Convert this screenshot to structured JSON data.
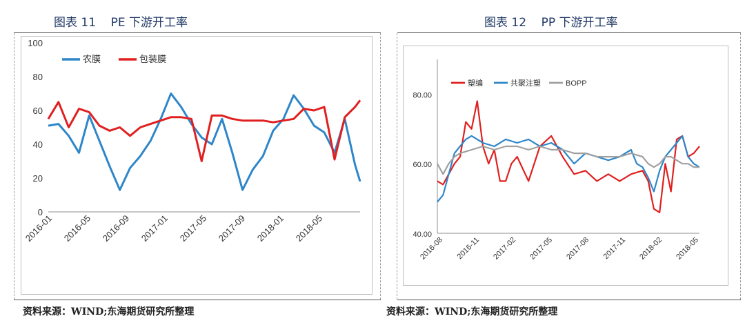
{
  "left": {
    "title": "图表 11    PE 下游开工率",
    "source": "资料来源：WIND;东海期货研究所整理"
  },
  "right": {
    "title": "图表 12    PP 下游开工率",
    "source": "资料来源：WIND;东海期货研究所整理"
  },
  "colors": {
    "blue": "#2e86c9",
    "red": "#e02020",
    "grey": "#a0a0a0"
  },
  "chart_data": [
    {
      "type": "line",
      "title": "",
      "xlabel": "",
      "ylabel": "",
      "ylim": [
        0,
        100
      ],
      "yticks": [
        0,
        20,
        40,
        60,
        80,
        100
      ],
      "xticks": [
        "2016-01",
        "2016-05",
        "2016-09",
        "2017-01",
        "2017-05",
        "2017-09",
        "2018-01",
        "2018-05"
      ],
      "xrange": [
        0,
        30.5
      ],
      "legend": "top-left",
      "grid": false,
      "series": [
        {
          "name": "农膜",
          "color": "blue",
          "x": [
            0,
            1,
            2,
            3,
            4,
            5,
            6,
            7,
            8,
            9,
            10,
            11,
            12,
            13,
            14,
            15,
            16,
            17,
            18,
            19,
            20,
            21,
            22,
            23,
            24,
            25,
            26,
            27,
            28,
            29,
            30,
            30.5
          ],
          "y": [
            51,
            52,
            45,
            35,
            57,
            42,
            27,
            13,
            26,
            33,
            42,
            55,
            70,
            62,
            52,
            44,
            40,
            55,
            35,
            13,
            25,
            33,
            48,
            55,
            69,
            61,
            51,
            47,
            35,
            55,
            28,
            18
          ]
        },
        {
          "name": "包装膜",
          "color": "red",
          "x": [
            0,
            1,
            2,
            3,
            4,
            5,
            6,
            7,
            8,
            9,
            10,
            11,
            12,
            13,
            14,
            15,
            16,
            17,
            18,
            19,
            20,
            21,
            22,
            23,
            24,
            25,
            26,
            27,
            28,
            29,
            30,
            30.5
          ],
          "y": [
            55,
            65,
            50,
            61,
            59,
            51,
            48,
            50,
            45,
            50,
            52,
            54,
            56,
            56,
            55,
            30,
            57,
            57,
            55,
            54,
            54,
            54,
            53,
            54,
            55,
            61,
            60,
            62,
            31,
            56,
            62,
            66
          ]
        }
      ]
    },
    {
      "type": "line",
      "title": "",
      "xlabel": "",
      "ylabel": "",
      "ylim": [
        40,
        90
      ],
      "yticks": [
        "40.00",
        "60.00",
        "80.00"
      ],
      "xticks": [
        "2016-08",
        "2016-11",
        "2017-02",
        "2017-05",
        "2017-08",
        "2017-11",
        "2018-02",
        "2018-05"
      ],
      "xrange": [
        0,
        23
      ],
      "legend": "top-left",
      "grid": false,
      "series": [
        {
          "name": "塑编",
          "color": "red",
          "x": [
            0,
            0.5,
            1,
            1.5,
            2,
            2.5,
            3,
            3.5,
            4,
            4.5,
            5,
            5.5,
            6,
            6.5,
            7,
            8,
            9,
            10,
            11,
            12,
            13,
            14,
            15,
            16,
            17,
            18,
            18.5,
            19,
            19.5,
            20,
            20.5,
            21,
            21.5,
            22,
            22.5,
            23
          ],
          "y": [
            55,
            54,
            57,
            60,
            62,
            72,
            70,
            78,
            65,
            60,
            64,
            55,
            55,
            60,
            62,
            55,
            65,
            68,
            62,
            57,
            58,
            55,
            57,
            55,
            57,
            58,
            55,
            47,
            46,
            60,
            52,
            67,
            68,
            62,
            63,
            65
          ]
        },
        {
          "name": "共聚注塑",
          "color": "blue",
          "x": [
            0,
            0.5,
            1,
            1.5,
            2,
            2.5,
            3,
            4,
            5,
            6,
            7,
            8,
            9,
            10,
            11,
            12,
            13,
            14,
            15,
            16,
            17,
            17.5,
            18,
            18.5,
            19,
            19.5,
            20,
            20.5,
            21,
            21.5,
            22,
            22.5,
            23
          ],
          "y": [
            49,
            51,
            57,
            63,
            65,
            67,
            68,
            66,
            65,
            67,
            66,
            67,
            65,
            66,
            64,
            60,
            63,
            62,
            61,
            62,
            64,
            60,
            59,
            56,
            52,
            58,
            62,
            64,
            66,
            68,
            62,
            60,
            59
          ]
        },
        {
          "name": "BOPP",
          "color": "grey",
          "x": [
            0,
            0.5,
            1,
            1.5,
            2,
            3,
            4,
            5,
            6,
            7,
            8,
            9,
            10,
            11,
            12,
            13,
            14,
            15,
            16,
            17,
            18,
            18.5,
            19,
            19.5,
            20,
            20.5,
            21,
            21.5,
            22,
            22.5,
            23
          ],
          "y": [
            60,
            57,
            60,
            62,
            63,
            64,
            65,
            64,
            65,
            65,
            64,
            65,
            64,
            64,
            63,
            63,
            62,
            62,
            62,
            63,
            62,
            60,
            59,
            60,
            62,
            62,
            61,
            60,
            60,
            59,
            59
          ]
        }
      ]
    }
  ]
}
